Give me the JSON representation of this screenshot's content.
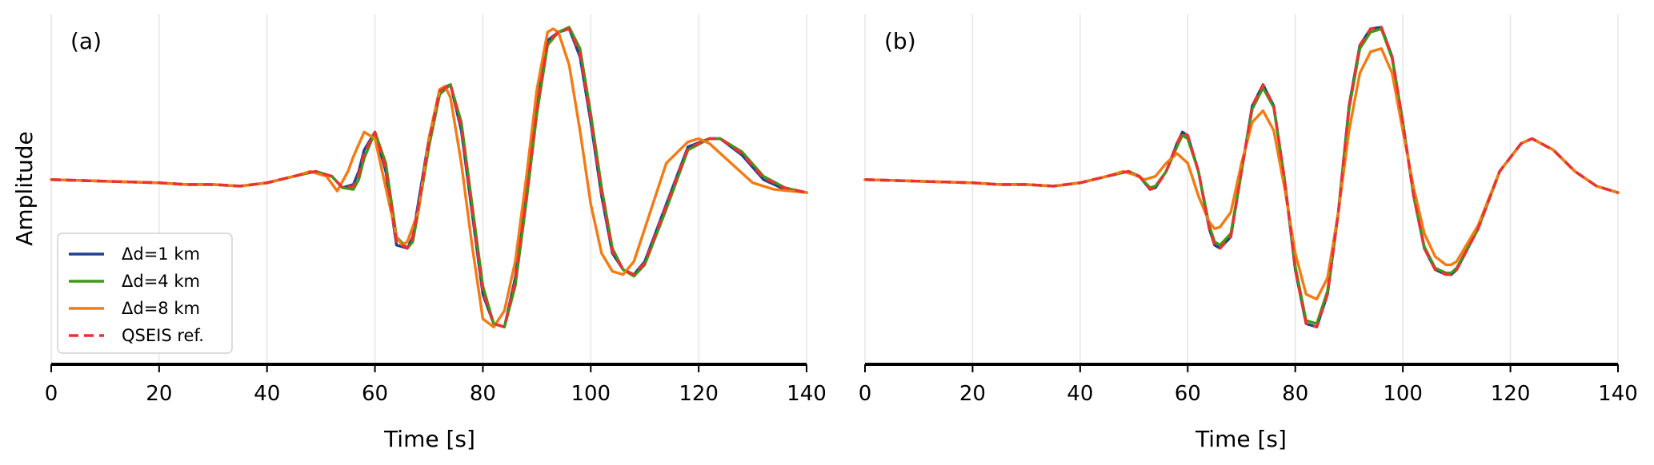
{
  "figure": {
    "ylabel": "Amplitude",
    "legend": {
      "placement": "lower-left",
      "panel": 0,
      "entries": [
        {
          "label": "Δd=1 km",
          "color": "#1f3f8f",
          "dash": false
        },
        {
          "label": "Δd=4 km",
          "color": "#3d9a14",
          "dash": false
        },
        {
          "label": "Δd=8 km",
          "color": "#f57a12",
          "dash": false
        },
        {
          "label": "QSEIS ref.",
          "color": "#ee3030",
          "dash": true
        }
      ]
    }
  },
  "chart_data": [
    {
      "type": "line",
      "panel_label": "(a)",
      "xlabel": "Time [s]",
      "ylabel": "Amplitude",
      "xlim": [
        0,
        140
      ],
      "ylim": [
        -1.05,
        0.95
      ],
      "xticks": [
        0,
        20,
        40,
        60,
        80,
        100,
        120,
        140
      ],
      "grid": "vertical",
      "series": [
        {
          "name": "Δd=1 km",
          "color": "#1f3f8f",
          "x": [
            0,
            10,
            20,
            25,
            30,
            35,
            40,
            45,
            49,
            52,
            54,
            56,
            57,
            58,
            60,
            62,
            64,
            66,
            67,
            68,
            70,
            72,
            74,
            76,
            78,
            80,
            82,
            84,
            86,
            88,
            90,
            92,
            94,
            96,
            98,
            100,
            102,
            104,
            106,
            108,
            110,
            114,
            118,
            122,
            124,
            128,
            132,
            136,
            140
          ],
          "y": [
            0.0,
            -0.01,
            -0.02,
            -0.03,
            -0.03,
            -0.04,
            -0.02,
            0.02,
            0.05,
            0.02,
            -0.05,
            -0.03,
            0.05,
            0.18,
            0.29,
            0.05,
            -0.4,
            -0.42,
            -0.35,
            -0.15,
            0.25,
            0.55,
            0.58,
            0.3,
            -0.2,
            -0.7,
            -0.88,
            -0.9,
            -0.6,
            -0.1,
            0.45,
            0.85,
            0.9,
            0.92,
            0.75,
            0.35,
            -0.1,
            -0.45,
            -0.55,
            -0.58,
            -0.5,
            -0.15,
            0.2,
            0.25,
            0.25,
            0.15,
            0.0,
            -0.06,
            -0.08
          ]
        },
        {
          "name": "Δd=4 km",
          "color": "#3d9a14",
          "x": [
            0,
            10,
            20,
            25,
            30,
            35,
            40,
            45,
            49,
            52,
            54,
            56,
            57,
            58,
            60,
            62,
            64,
            66,
            67,
            68,
            70,
            72,
            74,
            76,
            78,
            80,
            82,
            84,
            86,
            88,
            90,
            92,
            94,
            96,
            98,
            100,
            102,
            104,
            106,
            108,
            110,
            114,
            118,
            122,
            124,
            128,
            132,
            136,
            140
          ],
          "y": [
            0.0,
            -0.01,
            -0.02,
            -0.03,
            -0.03,
            -0.04,
            -0.02,
            0.02,
            0.05,
            0.02,
            -0.05,
            -0.06,
            0.0,
            0.13,
            0.29,
            0.1,
            -0.35,
            -0.42,
            -0.38,
            -0.2,
            0.2,
            0.52,
            0.58,
            0.35,
            -0.15,
            -0.65,
            -0.88,
            -0.9,
            -0.65,
            -0.15,
            0.4,
            0.82,
            0.9,
            0.93,
            0.8,
            0.4,
            -0.05,
            -0.42,
            -0.55,
            -0.59,
            -0.52,
            -0.18,
            0.18,
            0.25,
            0.25,
            0.17,
            0.02,
            -0.05,
            -0.08
          ]
        },
        {
          "name": "Δd=8 km",
          "color": "#f57a12",
          "x": [
            0,
            10,
            20,
            25,
            30,
            35,
            40,
            45,
            48,
            51,
            53,
            55,
            56,
            58,
            60,
            62,
            64,
            65,
            66,
            68,
            70,
            72,
            73,
            74,
            76,
            78,
            80,
            82,
            84,
            86,
            88,
            90,
            92,
            93,
            94,
            96,
            98,
            100,
            102,
            104,
            106,
            108,
            110,
            114,
            118,
            120,
            122,
            126,
            130,
            134,
            140
          ],
          "y": [
            0.0,
            -0.01,
            -0.02,
            -0.03,
            -0.03,
            -0.04,
            -0.02,
            0.02,
            0.05,
            0.02,
            -0.07,
            0.05,
            0.14,
            0.29,
            0.25,
            -0.05,
            -0.35,
            -0.4,
            -0.38,
            -0.2,
            0.25,
            0.55,
            0.57,
            0.5,
            0.1,
            -0.4,
            -0.85,
            -0.9,
            -0.8,
            -0.5,
            0.0,
            0.55,
            0.9,
            0.92,
            0.9,
            0.7,
            0.3,
            -0.15,
            -0.45,
            -0.56,
            -0.58,
            -0.5,
            -0.3,
            0.1,
            0.23,
            0.25,
            0.22,
            0.1,
            -0.02,
            -0.06,
            -0.08
          ]
        },
        {
          "name": "QSEIS ref.",
          "color": "#ee3030",
          "dash": true,
          "x": [
            0,
            10,
            20,
            25,
            30,
            35,
            40,
            45,
            49,
            52,
            54,
            56,
            57,
            58,
            60,
            62,
            64,
            66,
            67,
            68,
            70,
            72,
            74,
            76,
            78,
            80,
            82,
            84,
            86,
            88,
            90,
            92,
            94,
            96,
            98,
            100,
            102,
            104,
            106,
            108,
            110,
            114,
            118,
            122,
            124,
            128,
            132,
            136,
            140
          ],
          "y": [
            0.0,
            -0.01,
            -0.02,
            -0.03,
            -0.03,
            -0.04,
            -0.02,
            0.02,
            0.05,
            0.02,
            -0.05,
            -0.04,
            0.03,
            0.16,
            0.29,
            0.07,
            -0.38,
            -0.42,
            -0.36,
            -0.17,
            0.23,
            0.54,
            0.58,
            0.32,
            -0.18,
            -0.68,
            -0.88,
            -0.9,
            -0.62,
            -0.12,
            0.43,
            0.84,
            0.9,
            0.92,
            0.77,
            0.37,
            -0.08,
            -0.44,
            -0.55,
            -0.58,
            -0.51,
            -0.16,
            0.19,
            0.25,
            0.25,
            0.16,
            0.01,
            -0.05,
            -0.08
          ]
        }
      ]
    },
    {
      "type": "line",
      "panel_label": "(b)",
      "xlabel": "Time [s]",
      "ylabel": "",
      "xlim": [
        0,
        140
      ],
      "ylim": [
        -1.05,
        0.95
      ],
      "xticks": [
        0,
        20,
        40,
        60,
        80,
        100,
        120,
        140
      ],
      "grid": "vertical",
      "series": [
        {
          "name": "Δd=1 km",
          "color": "#1f3f8f",
          "x": [
            0,
            10,
            20,
            25,
            30,
            35,
            40,
            45,
            49,
            51,
            53,
            54,
            56,
            58,
            59,
            60,
            62,
            64,
            65,
            66,
            68,
            70,
            72,
            74,
            76,
            78,
            80,
            82,
            84,
            86,
            88,
            90,
            92,
            94,
            96,
            98,
            100,
            102,
            104,
            106,
            108,
            109,
            110,
            114,
            118,
            122,
            124,
            128,
            132,
            136,
            140
          ],
          "y": [
            0.0,
            -0.01,
            -0.02,
            -0.03,
            -0.03,
            -0.04,
            -0.02,
            0.02,
            0.05,
            0.02,
            -0.06,
            -0.05,
            0.05,
            0.22,
            0.29,
            0.27,
            0.05,
            -0.3,
            -0.4,
            -0.42,
            -0.35,
            0.05,
            0.45,
            0.58,
            0.45,
            0.0,
            -0.55,
            -0.88,
            -0.9,
            -0.7,
            -0.2,
            0.45,
            0.82,
            0.92,
            0.93,
            0.75,
            0.35,
            -0.1,
            -0.42,
            -0.55,
            -0.58,
            -0.58,
            -0.55,
            -0.3,
            0.05,
            0.22,
            0.25,
            0.18,
            0.05,
            -0.04,
            -0.08
          ]
        },
        {
          "name": "Δd=4 km",
          "color": "#3d9a14",
          "x": [
            0,
            10,
            20,
            25,
            30,
            35,
            40,
            45,
            49,
            51,
            53,
            54,
            56,
            58,
            59,
            60,
            62,
            64,
            65,
            66,
            68,
            70,
            72,
            74,
            76,
            78,
            80,
            82,
            84,
            86,
            88,
            90,
            92,
            94,
            96,
            98,
            100,
            102,
            104,
            106,
            108,
            109,
            110,
            114,
            118,
            122,
            124,
            128,
            132,
            136,
            140
          ],
          "y": [
            0.0,
            -0.01,
            -0.02,
            -0.03,
            -0.03,
            -0.04,
            -0.02,
            0.02,
            0.05,
            0.02,
            -0.05,
            -0.04,
            0.05,
            0.2,
            0.27,
            0.25,
            0.05,
            -0.28,
            -0.38,
            -0.4,
            -0.33,
            0.05,
            0.43,
            0.56,
            0.44,
            0.0,
            -0.53,
            -0.86,
            -0.88,
            -0.68,
            -0.2,
            0.43,
            0.8,
            0.9,
            0.92,
            0.74,
            0.35,
            -0.1,
            -0.41,
            -0.54,
            -0.57,
            -0.57,
            -0.54,
            -0.3,
            0.05,
            0.22,
            0.25,
            0.18,
            0.05,
            -0.04,
            -0.08
          ]
        },
        {
          "name": "Δd=8 km",
          "color": "#f57a12",
          "x": [
            0,
            10,
            20,
            25,
            30,
            35,
            40,
            45,
            48,
            50,
            52,
            54,
            56,
            58,
            60,
            62,
            64,
            65,
            66,
            68,
            70,
            72,
            74,
            76,
            78,
            80,
            82,
            84,
            86,
            88,
            90,
            92,
            94,
            96,
            98,
            100,
            102,
            104,
            106,
            108,
            109,
            110,
            114,
            118,
            122,
            124,
            128,
            132,
            136,
            140
          ],
          "y": [
            0.0,
            -0.01,
            -0.02,
            -0.03,
            -0.03,
            -0.04,
            -0.02,
            0.02,
            0.05,
            0.03,
            0.0,
            0.02,
            0.1,
            0.16,
            0.1,
            -0.1,
            -0.26,
            -0.3,
            -0.29,
            -0.2,
            0.1,
            0.35,
            0.42,
            0.3,
            -0.05,
            -0.45,
            -0.7,
            -0.73,
            -0.6,
            -0.2,
            0.3,
            0.65,
            0.78,
            0.8,
            0.65,
            0.3,
            -0.05,
            -0.33,
            -0.47,
            -0.52,
            -0.52,
            -0.5,
            -0.28,
            0.05,
            0.22,
            0.25,
            0.18,
            0.05,
            -0.04,
            -0.08
          ]
        },
        {
          "name": "QSEIS ref.",
          "color": "#ee3030",
          "dash": true,
          "x": [
            0,
            10,
            20,
            25,
            30,
            35,
            40,
            45,
            49,
            51,
            53,
            54,
            56,
            58,
            59,
            60,
            62,
            64,
            65,
            66,
            68,
            70,
            72,
            74,
            76,
            78,
            80,
            82,
            84,
            86,
            88,
            90,
            92,
            94,
            96,
            98,
            100,
            102,
            104,
            106,
            108,
            109,
            110,
            114,
            118,
            122,
            124,
            128,
            132,
            136,
            140
          ],
          "y": [
            0.0,
            -0.01,
            -0.02,
            -0.03,
            -0.03,
            -0.04,
            -0.02,
            0.02,
            0.05,
            0.02,
            -0.06,
            -0.05,
            0.05,
            0.22,
            0.29,
            0.27,
            0.05,
            -0.3,
            -0.4,
            -0.42,
            -0.35,
            0.05,
            0.45,
            0.58,
            0.45,
            0.0,
            -0.55,
            -0.88,
            -0.9,
            -0.7,
            -0.2,
            0.45,
            0.82,
            0.92,
            0.93,
            0.75,
            0.35,
            -0.1,
            -0.42,
            -0.55,
            -0.58,
            -0.58,
            -0.55,
            -0.3,
            0.05,
            0.22,
            0.25,
            0.18,
            0.05,
            -0.04,
            -0.08
          ]
        }
      ]
    }
  ]
}
